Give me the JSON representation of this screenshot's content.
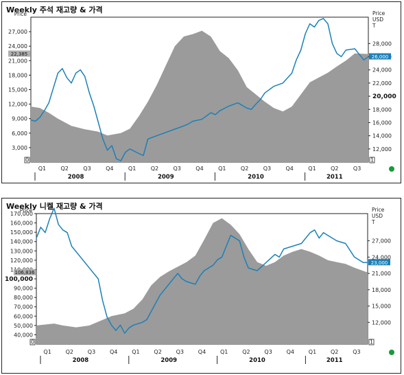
{
  "colors": {
    "inventory": "#9b9b9b",
    "price": "#1b80b8",
    "frame": "#222222",
    "ok_dot": "#1a9a3a"
  },
  "chart_data": [
    {
      "type": "line",
      "title": "Weekly 주석 재고량 & 가격",
      "left_axis_label": "Price",
      "right_axis_label": "Price\nUSD\nT",
      "left_ylim": [
        0,
        30000
      ],
      "left_ticks": [
        "3,000",
        "6,000",
        "9,000",
        "12,000",
        "15,000",
        "18,000",
        "21,000",
        "24,000",
        "27,000"
      ],
      "left_tick_values": [
        3000,
        6000,
        9000,
        12000,
        15000,
        18000,
        21000,
        24000,
        27000
      ],
      "bold_left_tick": null,
      "right_ylim": [
        10000,
        32000
      ],
      "right_ticks": [
        "12,000",
        "14,000",
        "16,000",
        "18,000",
        "20,000",
        "22,000",
        "24,000",
        "26,000",
        "28,000"
      ],
      "right_tick_values": [
        12000,
        14000,
        16000,
        18000,
        20000,
        22000,
        24000,
        26000,
        28000
      ],
      "bold_right_tick": "20,000",
      "left_zero_label": "0",
      "right_zero_label": "1",
      "left_tag": "22,385",
      "right_tag": "26,000",
      "quarters": [
        "Q1",
        "Q2",
        "Q3",
        "Q4",
        "Q1",
        "Q2",
        "Q3",
        "Q4",
        "Q1",
        "Q2",
        "Q3",
        "Q4",
        "Q1",
        "Q2",
        "Q3"
      ],
      "years": [
        "2008",
        "2009",
        "2010",
        "2011"
      ],
      "x_range": [
        2008.0,
        2011.75
      ],
      "series": [
        {
          "role": "inventory",
          "axis": "left",
          "x": [
            2008.0,
            2008.1,
            2008.2,
            2008.3,
            2008.45,
            2008.6,
            2008.75,
            2008.85,
            2009.0,
            2009.1,
            2009.2,
            2009.3,
            2009.4,
            2009.5,
            2009.6,
            2009.7,
            2009.8,
            2009.9,
            2010.0,
            2010.1,
            2010.2,
            2010.3,
            2010.4,
            2010.5,
            2010.6,
            2010.7,
            2010.8,
            2010.9,
            2011.0,
            2011.1,
            2011.2,
            2011.3,
            2011.4,
            2011.5,
            2011.6,
            2011.75
          ],
          "y": [
            11500,
            11200,
            10200,
            9000,
            7500,
            6800,
            6300,
            5500,
            6000,
            6900,
            9500,
            12500,
            16000,
            20000,
            24000,
            26000,
            26500,
            27200,
            26000,
            23000,
            21500,
            19000,
            15500,
            14000,
            12500,
            11200,
            10500,
            11500,
            14000,
            16500,
            17500,
            18500,
            19800,
            21000,
            22500,
            22385
          ]
        },
        {
          "role": "price",
          "axis": "right",
          "x": [
            2008.0,
            2008.05,
            2008.1,
            2008.15,
            2008.2,
            2008.3,
            2008.35,
            2008.4,
            2008.45,
            2008.5,
            2008.55,
            2008.6,
            2008.65,
            2008.7,
            2008.75,
            2008.8,
            2008.85,
            2008.9,
            2008.95,
            2009.0,
            2009.05,
            2009.1,
            2009.2,
            2009.25,
            2009.3,
            2009.4,
            2009.5,
            2009.6,
            2009.7,
            2009.75,
            2009.8,
            2009.9,
            2010.0,
            2010.05,
            2010.1,
            2010.2,
            2010.3,
            2010.4,
            2010.45,
            2010.5,
            2010.55,
            2010.6,
            2010.7,
            2010.8,
            2010.9,
            2010.95,
            2011.0,
            2011.05,
            2011.1,
            2011.15,
            2011.2,
            2011.25,
            2011.3,
            2011.35,
            2011.4,
            2011.45,
            2011.5,
            2011.6,
            2011.7,
            2011.75
          ],
          "y": [
            16400,
            16200,
            16800,
            17800,
            19000,
            23500,
            24200,
            22800,
            22000,
            23500,
            24000,
            23000,
            20500,
            18500,
            16000,
            13500,
            11800,
            12500,
            10500,
            10200,
            11500,
            12000,
            11300,
            11000,
            13500,
            14000,
            14500,
            15000,
            15500,
            15800,
            16200,
            16500,
            17500,
            17200,
            17800,
            18500,
            19000,
            18200,
            18000,
            18800,
            19500,
            20500,
            21500,
            22000,
            23500,
            25500,
            27000,
            29500,
            31000,
            30500,
            31500,
            31800,
            31000,
            28000,
            26500,
            26000,
            27000,
            27200,
            25500,
            26000
          ]
        }
      ]
    },
    {
      "type": "line",
      "title": "Weekly 니켈 재고량 & 가격",
      "left_axis_label": "Price",
      "right_axis_label": "Price\nUSD\nT",
      "left_ylim": [
        30000,
        170000
      ],
      "left_ticks": [
        "40,000",
        "50,000",
        "60,000",
        "70,000",
        "80,000",
        "90,000",
        "100,000",
        "110,000",
        "120,000",
        "130,000",
        "140,000",
        "150,000",
        "160,000",
        "170,000"
      ],
      "left_tick_values": [
        40000,
        50000,
        60000,
        70000,
        80000,
        90000,
        100000,
        110000,
        120000,
        130000,
        140000,
        150000,
        160000,
        170000
      ],
      "bold_left_tick": "100,000",
      "right_ylim": [
        8000,
        32000
      ],
      "right_ticks": [
        "12,000",
        "15,000",
        "18,000",
        "21,000",
        "24,000",
        "27,000"
      ],
      "right_tick_values": [
        12000,
        15000,
        18000,
        21000,
        24000,
        27000
      ],
      "bold_right_tick": null,
      "left_zero_label": "0",
      "right_zero_label": "1",
      "left_tag": "106,836",
      "right_tag": "23,000",
      "quarters": [
        "Q1",
        "Q2",
        "Q3",
        "Q4",
        "Q1",
        "Q2",
        "Q3",
        "Q4",
        "Q1",
        "Q2",
        "Q3",
        "Q4",
        "Q1",
        "Q2",
        "Q3"
      ],
      "years": [
        "2008",
        "2009",
        "2010",
        "2011"
      ],
      "x_range": [
        2008.0,
        2011.75
      ],
      "series": [
        {
          "role": "inventory",
          "axis": "left",
          "x": [
            2008.0,
            2008.1,
            2008.2,
            2008.3,
            2008.45,
            2008.6,
            2008.75,
            2008.85,
            2009.0,
            2009.1,
            2009.2,
            2009.3,
            2009.4,
            2009.5,
            2009.6,
            2009.7,
            2009.8,
            2009.9,
            2010.0,
            2010.1,
            2010.2,
            2010.3,
            2010.4,
            2010.5,
            2010.6,
            2010.7,
            2010.8,
            2010.9,
            2011.0,
            2011.1,
            2011.2,
            2011.3,
            2011.4,
            2011.5,
            2011.6,
            2011.75
          ],
          "y": [
            50000,
            51000,
            52000,
            50000,
            48000,
            50000,
            56000,
            60000,
            63000,
            68000,
            78000,
            93000,
            102000,
            108000,
            113000,
            118000,
            125000,
            142000,
            160000,
            165000,
            158000,
            148000,
            132000,
            118000,
            114000,
            118000,
            125000,
            129000,
            132000,
            129000,
            125000,
            120000,
            118000,
            116000,
            112000,
            106836
          ]
        },
        {
          "role": "price",
          "axis": "right",
          "x": [
            2008.0,
            2008.05,
            2008.1,
            2008.15,
            2008.2,
            2008.25,
            2008.3,
            2008.35,
            2008.4,
            2008.5,
            2008.6,
            2008.7,
            2008.75,
            2008.8,
            2008.85,
            2008.9,
            2008.95,
            2009.0,
            2009.05,
            2009.1,
            2009.2,
            2009.25,
            2009.3,
            2009.4,
            2009.5,
            2009.6,
            2009.65,
            2009.7,
            2009.8,
            2009.85,
            2009.9,
            2010.0,
            2010.05,
            2010.1,
            2010.15,
            2010.2,
            2010.3,
            2010.35,
            2010.4,
            2010.5,
            2010.6,
            2010.7,
            2010.75,
            2010.8,
            2010.9,
            2011.0,
            2011.05,
            2011.1,
            2011.15,
            2011.2,
            2011.25,
            2011.3,
            2011.4,
            2011.5,
            2011.6,
            2011.7,
            2011.75
          ],
          "y": [
            27500,
            29500,
            28500,
            31000,
            33000,
            30000,
            29000,
            28500,
            26000,
            24000,
            22000,
            20000,
            16000,
            13000,
            11500,
            10500,
            11500,
            10000,
            11000,
            11500,
            12000,
            12500,
            14000,
            17000,
            19000,
            21000,
            20000,
            19500,
            19000,
            20500,
            21500,
            22500,
            23500,
            24000,
            26000,
            28000,
            27000,
            24000,
            22000,
            21500,
            23000,
            24500,
            24000,
            25500,
            26000,
            26500,
            27500,
            28500,
            29000,
            27500,
            28500,
            28000,
            27000,
            26500,
            24000,
            23000,
            23000
          ]
        }
      ]
    }
  ]
}
